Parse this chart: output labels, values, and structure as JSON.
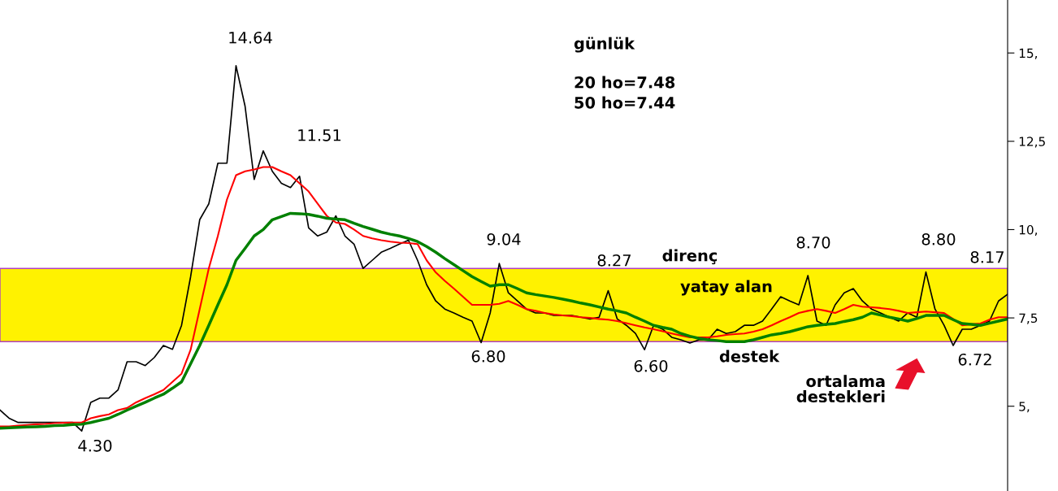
{
  "chart_data": {
    "type": "line",
    "title": "günlük",
    "categories": [
      null,
      null,
      null,
      null,
      null,
      null,
      null,
      null,
      null,
      null,
      null,
      null,
      null,
      null,
      null,
      null,
      null,
      null,
      null,
      null,
      null,
      null,
      null,
      null,
      null,
      null,
      null,
      null,
      null,
      null,
      null,
      null,
      null,
      null,
      null,
      null,
      null,
      null,
      null,
      null,
      null,
      null,
      null,
      null,
      null,
      null,
      null,
      null,
      null,
      null,
      null,
      null,
      null,
      null,
      null,
      null,
      null,
      null,
      null,
      null,
      null,
      null,
      null,
      null,
      null,
      null,
      null,
      null,
      null,
      null,
      null,
      null,
      null,
      null,
      null,
      null,
      null,
      null,
      null,
      null,
      null,
      null,
      null,
      null,
      null,
      null,
      null,
      null,
      null,
      null,
      null,
      null,
      null,
      null,
      null,
      null,
      null,
      null,
      null,
      null,
      null,
      null,
      null,
      null,
      null,
      null,
      null,
      null,
      null,
      null,
      null,
      null
    ],
    "series": [
      {
        "color": "#000000",
        "values": [
          4.89,
          4.66,
          4.54,
          4.54,
          4.54,
          4.54,
          4.54,
          4.54,
          4.54,
          4.3,
          5.11,
          5.23,
          5.23,
          5.46,
          6.26,
          6.26,
          6.15,
          6.38,
          6.72,
          6.61,
          7.29,
          8.67,
          10.28,
          10.73,
          11.88,
          11.88,
          14.64,
          13.49,
          11.42,
          12.23,
          11.65,
          11.31,
          11.19,
          11.51,
          10.05,
          9.82,
          9.93,
          10.39,
          9.82,
          9.59,
          8.9,
          9.13,
          9.36,
          9.47,
          9.59,
          9.7,
          9.13,
          8.44,
          7.98,
          7.75,
          7.64,
          7.52,
          7.41,
          6.8,
          7.64,
          9.04,
          8.21,
          7.98,
          7.75,
          7.64,
          7.64,
          7.57,
          7.57,
          7.57,
          7.52,
          7.47,
          7.52,
          8.27,
          7.47,
          7.29,
          7.06,
          6.6,
          7.29,
          7.18,
          6.95,
          6.88,
          6.79,
          6.88,
          6.88,
          7.18,
          7.06,
          7.11,
          7.29,
          7.29,
          7.41,
          7.75,
          8.1,
          7.98,
          7.87,
          8.7,
          7.41,
          7.29,
          7.87,
          8.21,
          8.33,
          7.98,
          7.75,
          7.64,
          7.52,
          7.41,
          7.64,
          7.52,
          8.8,
          7.75,
          7.29,
          6.72,
          7.18,
          7.18,
          7.29,
          7.41,
          7.98,
          8.17
        ]
      },
      {
        "color": "#ff0000",
        "values": [
          4.43,
          4.43,
          4.45,
          4.47,
          4.49,
          4.5,
          4.52,
          4.53,
          4.54,
          4.54,
          4.66,
          4.72,
          4.77,
          4.89,
          4.95,
          5.11,
          5.23,
          5.34,
          5.46,
          5.69,
          5.92,
          6.6,
          7.75,
          8.9,
          9.82,
          10.85,
          11.54,
          11.65,
          11.7,
          11.77,
          11.77,
          11.65,
          11.54,
          11.31,
          11.08,
          10.73,
          10.39,
          10.2,
          10.16,
          10.0,
          9.82,
          9.75,
          9.7,
          9.66,
          9.63,
          9.62,
          9.59,
          9.13,
          8.79,
          8.55,
          8.33,
          8.1,
          7.87,
          7.87,
          7.87,
          7.9,
          7.98,
          7.87,
          7.75,
          7.7,
          7.64,
          7.6,
          7.57,
          7.55,
          7.52,
          7.5,
          7.47,
          7.45,
          7.41,
          7.35,
          7.29,
          7.23,
          7.18,
          7.12,
          7.06,
          7.0,
          6.95,
          6.95,
          6.95,
          6.98,
          7.02,
          7.04,
          7.06,
          7.11,
          7.18,
          7.29,
          7.41,
          7.52,
          7.64,
          7.7,
          7.75,
          7.7,
          7.64,
          7.75,
          7.87,
          7.82,
          7.8,
          7.78,
          7.75,
          7.7,
          7.64,
          7.66,
          7.68,
          7.66,
          7.64,
          7.47,
          7.29,
          7.32,
          7.34,
          7.45,
          7.52,
          7.52
        ]
      },
      {
        "color": "#008000",
        "values": [
          4.38,
          4.39,
          4.4,
          4.41,
          4.42,
          4.43,
          4.45,
          4.46,
          4.48,
          4.49,
          4.54,
          4.6,
          4.66,
          4.77,
          4.89,
          5.0,
          5.11,
          5.23,
          5.34,
          5.51,
          5.69,
          6.2,
          6.72,
          7.29,
          7.87,
          8.44,
          9.13,
          9.47,
          9.82,
          10.0,
          10.28,
          10.37,
          10.46,
          10.45,
          10.43,
          10.38,
          10.32,
          10.3,
          10.28,
          10.18,
          10.09,
          10.01,
          9.93,
          9.87,
          9.82,
          9.75,
          9.66,
          9.52,
          9.36,
          9.18,
          9.01,
          8.84,
          8.67,
          8.53,
          8.4,
          8.44,
          8.44,
          8.33,
          8.21,
          8.16,
          8.12,
          8.08,
          8.03,
          7.98,
          7.92,
          7.87,
          7.81,
          7.75,
          7.7,
          7.64,
          7.52,
          7.41,
          7.29,
          7.23,
          7.18,
          7.06,
          6.98,
          6.92,
          6.88,
          6.86,
          6.83,
          6.83,
          6.83,
          6.88,
          6.95,
          7.02,
          7.06,
          7.11,
          7.18,
          7.25,
          7.29,
          7.32,
          7.34,
          7.4,
          7.45,
          7.52,
          7.64,
          7.58,
          7.52,
          7.47,
          7.41,
          7.48,
          7.57,
          7.57,
          7.57,
          7.45,
          7.34,
          7.32,
          7.29,
          7.35,
          7.41,
          7.47
        ]
      }
    ],
    "ylim": [
      2.6,
      16.5
    ],
    "yticks": [
      {
        "value": 5,
        "label": "5,"
      },
      {
        "value": 7.5,
        "label": "7,5"
      },
      {
        "value": 10,
        "label": "10,"
      },
      {
        "value": 12.5,
        "label": "12,5"
      },
      {
        "value": 15,
        "label": "15,"
      }
    ],
    "bands": [
      {
        "axis": "y",
        "from": 6.83,
        "to": 8.9,
        "color": "#fff200"
      }
    ],
    "annotations": [
      "14.64",
      "11.51",
      "4.30",
      "9.04",
      "6.80",
      "8.27",
      "6.60",
      "8.70",
      "8.80",
      "6.72",
      "8.17",
      "direnç",
      "yatay alan",
      "destek",
      "ortalama\ndestekleri",
      "20 ho=7.48",
      "50 ho=7.44"
    ],
    "grid": false,
    "legend": false,
    "line_style": "solid"
  }
}
